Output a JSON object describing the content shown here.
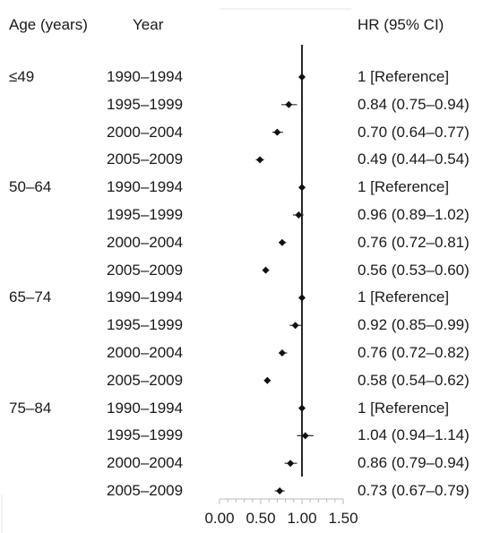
{
  "headers": {
    "age": "Age (years)",
    "year": "Year",
    "hr": "HR (95% CI)"
  },
  "x_ticks": [
    "0.00",
    "0.50",
    "1.00",
    "1.50"
  ],
  "groups": [
    {
      "age": "≤49",
      "rows": [
        {
          "year": "1990–1994",
          "hr_text": "1 [Reference]"
        },
        {
          "year": "1995–1999",
          "hr_text": "0.84 (0.75–0.94)"
        },
        {
          "year": "2000–2004",
          "hr_text": "0.70 (0.64–0.77)"
        },
        {
          "year": "2005–2009",
          "hr_text": "0.49 (0.44–0.54)"
        }
      ]
    },
    {
      "age": "50–64",
      "rows": [
        {
          "year": "1990–1994",
          "hr_text": "1 [Reference]"
        },
        {
          "year": "1995–1999",
          "hr_text": "0.96 (0.89–1.02)"
        },
        {
          "year": "2000–2004",
          "hr_text": "0.76 (0.72–0.81)"
        },
        {
          "year": "2005–2009",
          "hr_text": "0.56 (0.53–0.60)"
        }
      ]
    },
    {
      "age": "65–74",
      "rows": [
        {
          "year": "1990–1994",
          "hr_text": "1 [Reference]"
        },
        {
          "year": "1995–1999",
          "hr_text": "0.92 (0.85–0.99)"
        },
        {
          "year": "2000–2004",
          "hr_text": "0.76 (0.72–0.82)"
        },
        {
          "year": "2005–2009",
          "hr_text": "0.58 (0.54–0.62)"
        }
      ]
    },
    {
      "age": "75–84",
      "rows": [
        {
          "year": "1990–1994",
          "hr_text": "1 [Reference]"
        },
        {
          "year": "1995–1999",
          "hr_text": "1.04 (0.94–1.14)"
        },
        {
          "year": "2000–2004",
          "hr_text": "0.86 (0.79–0.94)"
        },
        {
          "year": "2005–2009",
          "hr_text": "0.73 (0.67–0.79)"
        }
      ]
    }
  ],
  "chart_data": {
    "type": "forest",
    "xlim": [
      0,
      1.5
    ],
    "reference_line": 1.0,
    "x_ticks": [
      0.0,
      0.5,
      1.0,
      1.5
    ],
    "rows": [
      {
        "age": "≤49",
        "year": "1990–1994",
        "hr": 1.0,
        "lo": 1.0,
        "hi": 1.0
      },
      {
        "age": "≤49",
        "year": "1995–1999",
        "hr": 0.84,
        "lo": 0.75,
        "hi": 0.94
      },
      {
        "age": "≤49",
        "year": "2000–2004",
        "hr": 0.7,
        "lo": 0.64,
        "hi": 0.77
      },
      {
        "age": "≤49",
        "year": "2005–2009",
        "hr": 0.49,
        "lo": 0.44,
        "hi": 0.54
      },
      {
        "age": "50–64",
        "year": "1990–1994",
        "hr": 1.0,
        "lo": 1.0,
        "hi": 1.0
      },
      {
        "age": "50–64",
        "year": "1995–1999",
        "hr": 0.96,
        "lo": 0.89,
        "hi": 1.02
      },
      {
        "age": "50–64",
        "year": "2000–2004",
        "hr": 0.76,
        "lo": 0.72,
        "hi": 0.81
      },
      {
        "age": "50–64",
        "year": "2005–2009",
        "hr": 0.56,
        "lo": 0.53,
        "hi": 0.6
      },
      {
        "age": "65–74",
        "year": "1990–1994",
        "hr": 1.0,
        "lo": 1.0,
        "hi": 1.0
      },
      {
        "age": "65–74",
        "year": "1995–1999",
        "hr": 0.92,
        "lo": 0.85,
        "hi": 0.99
      },
      {
        "age": "65–74",
        "year": "2000–2004",
        "hr": 0.76,
        "lo": 0.72,
        "hi": 0.82
      },
      {
        "age": "65–74",
        "year": "2005–2009",
        "hr": 0.58,
        "lo": 0.54,
        "hi": 0.62
      },
      {
        "age": "75–84",
        "year": "1990–1994",
        "hr": 1.0,
        "lo": 1.0,
        "hi": 1.0
      },
      {
        "age": "75–84",
        "year": "1995–1999",
        "hr": 1.04,
        "lo": 0.94,
        "hi": 1.14
      },
      {
        "age": "75–84",
        "year": "2000–2004",
        "hr": 0.86,
        "lo": 0.79,
        "hi": 0.94
      },
      {
        "age": "75–84",
        "year": "2005–2009",
        "hr": 0.73,
        "lo": 0.67,
        "hi": 0.79
      }
    ]
  }
}
